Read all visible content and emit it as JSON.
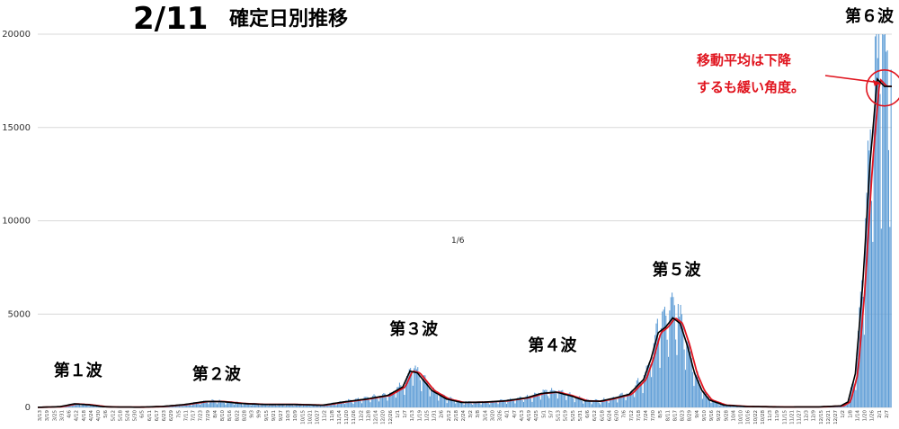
{
  "title": {
    "date": "2/11",
    "main": "確定日別推移"
  },
  "center_label": "1/6",
  "annotation": {
    "line1": "移動平均は下降",
    "line2": "するも緩い角度。",
    "color": "#e0141e"
  },
  "colors": {
    "bars": "#5b9bd5",
    "avg_black": "#000000",
    "avg_red": "#e0141e",
    "grid": "#d9d9d9"
  },
  "chart_data": {
    "type": "bar",
    "ylim": [
      0,
      20000
    ],
    "yticks": [
      0,
      5000,
      10000,
      15000,
      20000
    ],
    "ytick_labels": [
      "0",
      "5000",
      "10000",
      "15000",
      "20000"
    ],
    "grid": true,
    "xtick_labels": [
      "3/13",
      "3/19",
      "3/25",
      "3/31",
      "4/6",
      "4/12",
      "4/18",
      "4/24",
      "4/30",
      "5/6",
      "5/12",
      "5/18",
      "5/24",
      "5/30",
      "6/5",
      "6/11",
      "6/17",
      "6/23",
      "6/29",
      "7/5",
      "7/11",
      "7/17",
      "7/23",
      "7/29",
      "8/4",
      "8/10",
      "8/16",
      "8/22",
      "8/28",
      "9/3",
      "9/9",
      "9/15",
      "9/21",
      "9/27",
      "10/3",
      "10/9",
      "10/15",
      "10/21",
      "10/27",
      "11/2",
      "11/8",
      "11/14",
      "11/20",
      "11/26",
      "12/2",
      "12/8",
      "12/14",
      "12/20",
      "12/26",
      "1/1",
      "1/7",
      "1/13",
      "1/19",
      "1/25",
      "1/31",
      "2/6",
      "2/12",
      "2/18",
      "2/24",
      "3/2",
      "3/8",
      "3/14",
      "3/20",
      "3/26",
      "4/1",
      "4/7",
      "4/13",
      "4/19",
      "4/25",
      "5/1",
      "5/7",
      "5/13",
      "5/19",
      "5/25",
      "5/31",
      "6/6",
      "6/12",
      "6/18",
      "6/24",
      "6/30",
      "7/6",
      "7/12",
      "7/18",
      "7/24",
      "7/30",
      "8/5",
      "8/11",
      "8/17",
      "8/23",
      "8/29",
      "9/4",
      "9/10",
      "9/16",
      "9/22",
      "9/28",
      "10/4",
      "10/10",
      "10/16",
      "10/22",
      "10/28",
      "11/3",
      "11/9",
      "11/15",
      "11/21",
      "11/27",
      "12/3",
      "12/9",
      "12/15",
      "12/21",
      "12/27",
      "1/2",
      "1/8",
      "1/14",
      "1/20",
      "1/26",
      "2/1",
      "2/7"
    ],
    "waves": [
      {
        "label": "第１波",
        "x_index": 5,
        "peak": 700
      },
      {
        "label": "第２波",
        "x_index": 24,
        "peak": 780
      },
      {
        "label": "第３波",
        "x_index": 51,
        "peak": 2400
      },
      {
        "label": "第４波",
        "x_index": 70,
        "peak": 1100
      },
      {
        "label": "第５波",
        "x_index": 87,
        "peak": 5600
      },
      {
        "label": "第６波",
        "x_index": 115,
        "peak": 20500
      }
    ],
    "trend_points": [
      [
        0,
        5
      ],
      [
        3,
        40
      ],
      [
        5,
        190
      ],
      [
        7,
        140
      ],
      [
        9,
        40
      ],
      [
        11,
        20
      ],
      [
        14,
        15
      ],
      [
        17,
        50
      ],
      [
        20,
        150
      ],
      [
        23,
        320
      ],
      [
        25,
        320
      ],
      [
        28,
        210
      ],
      [
        31,
        160
      ],
      [
        35,
        160
      ],
      [
        39,
        120
      ],
      [
        42,
        300
      ],
      [
        45,
        450
      ],
      [
        48,
        650
      ],
      [
        50,
        1100
      ],
      [
        51,
        1950
      ],
      [
        52,
        1850
      ],
      [
        54,
        900
      ],
      [
        56,
        450
      ],
      [
        58,
        270
      ],
      [
        61,
        280
      ],
      [
        64,
        350
      ],
      [
        67,
        520
      ],
      [
        69,
        750
      ],
      [
        71,
        820
      ],
      [
        73,
        620
      ],
      [
        75,
        350
      ],
      [
        77,
        330
      ],
      [
        79,
        500
      ],
      [
        81,
        700
      ],
      [
        83,
        1500
      ],
      [
        84,
        2600
      ],
      [
        85,
        4000
      ],
      [
        86,
        4300
      ],
      [
        87,
        4800
      ],
      [
        88,
        4500
      ],
      [
        89,
        3300
      ],
      [
        90,
        1800
      ],
      [
        91,
        900
      ],
      [
        92,
        400
      ],
      [
        94,
        120
      ],
      [
        97,
        50
      ],
      [
        102,
        25
      ],
      [
        107,
        30
      ],
      [
        110,
        80
      ],
      [
        111,
        300
      ],
      [
        112,
        1800
      ],
      [
        113,
        6500
      ],
      [
        114,
        13000
      ],
      [
        115,
        17600
      ],
      [
        116,
        17200
      ]
    ]
  }
}
